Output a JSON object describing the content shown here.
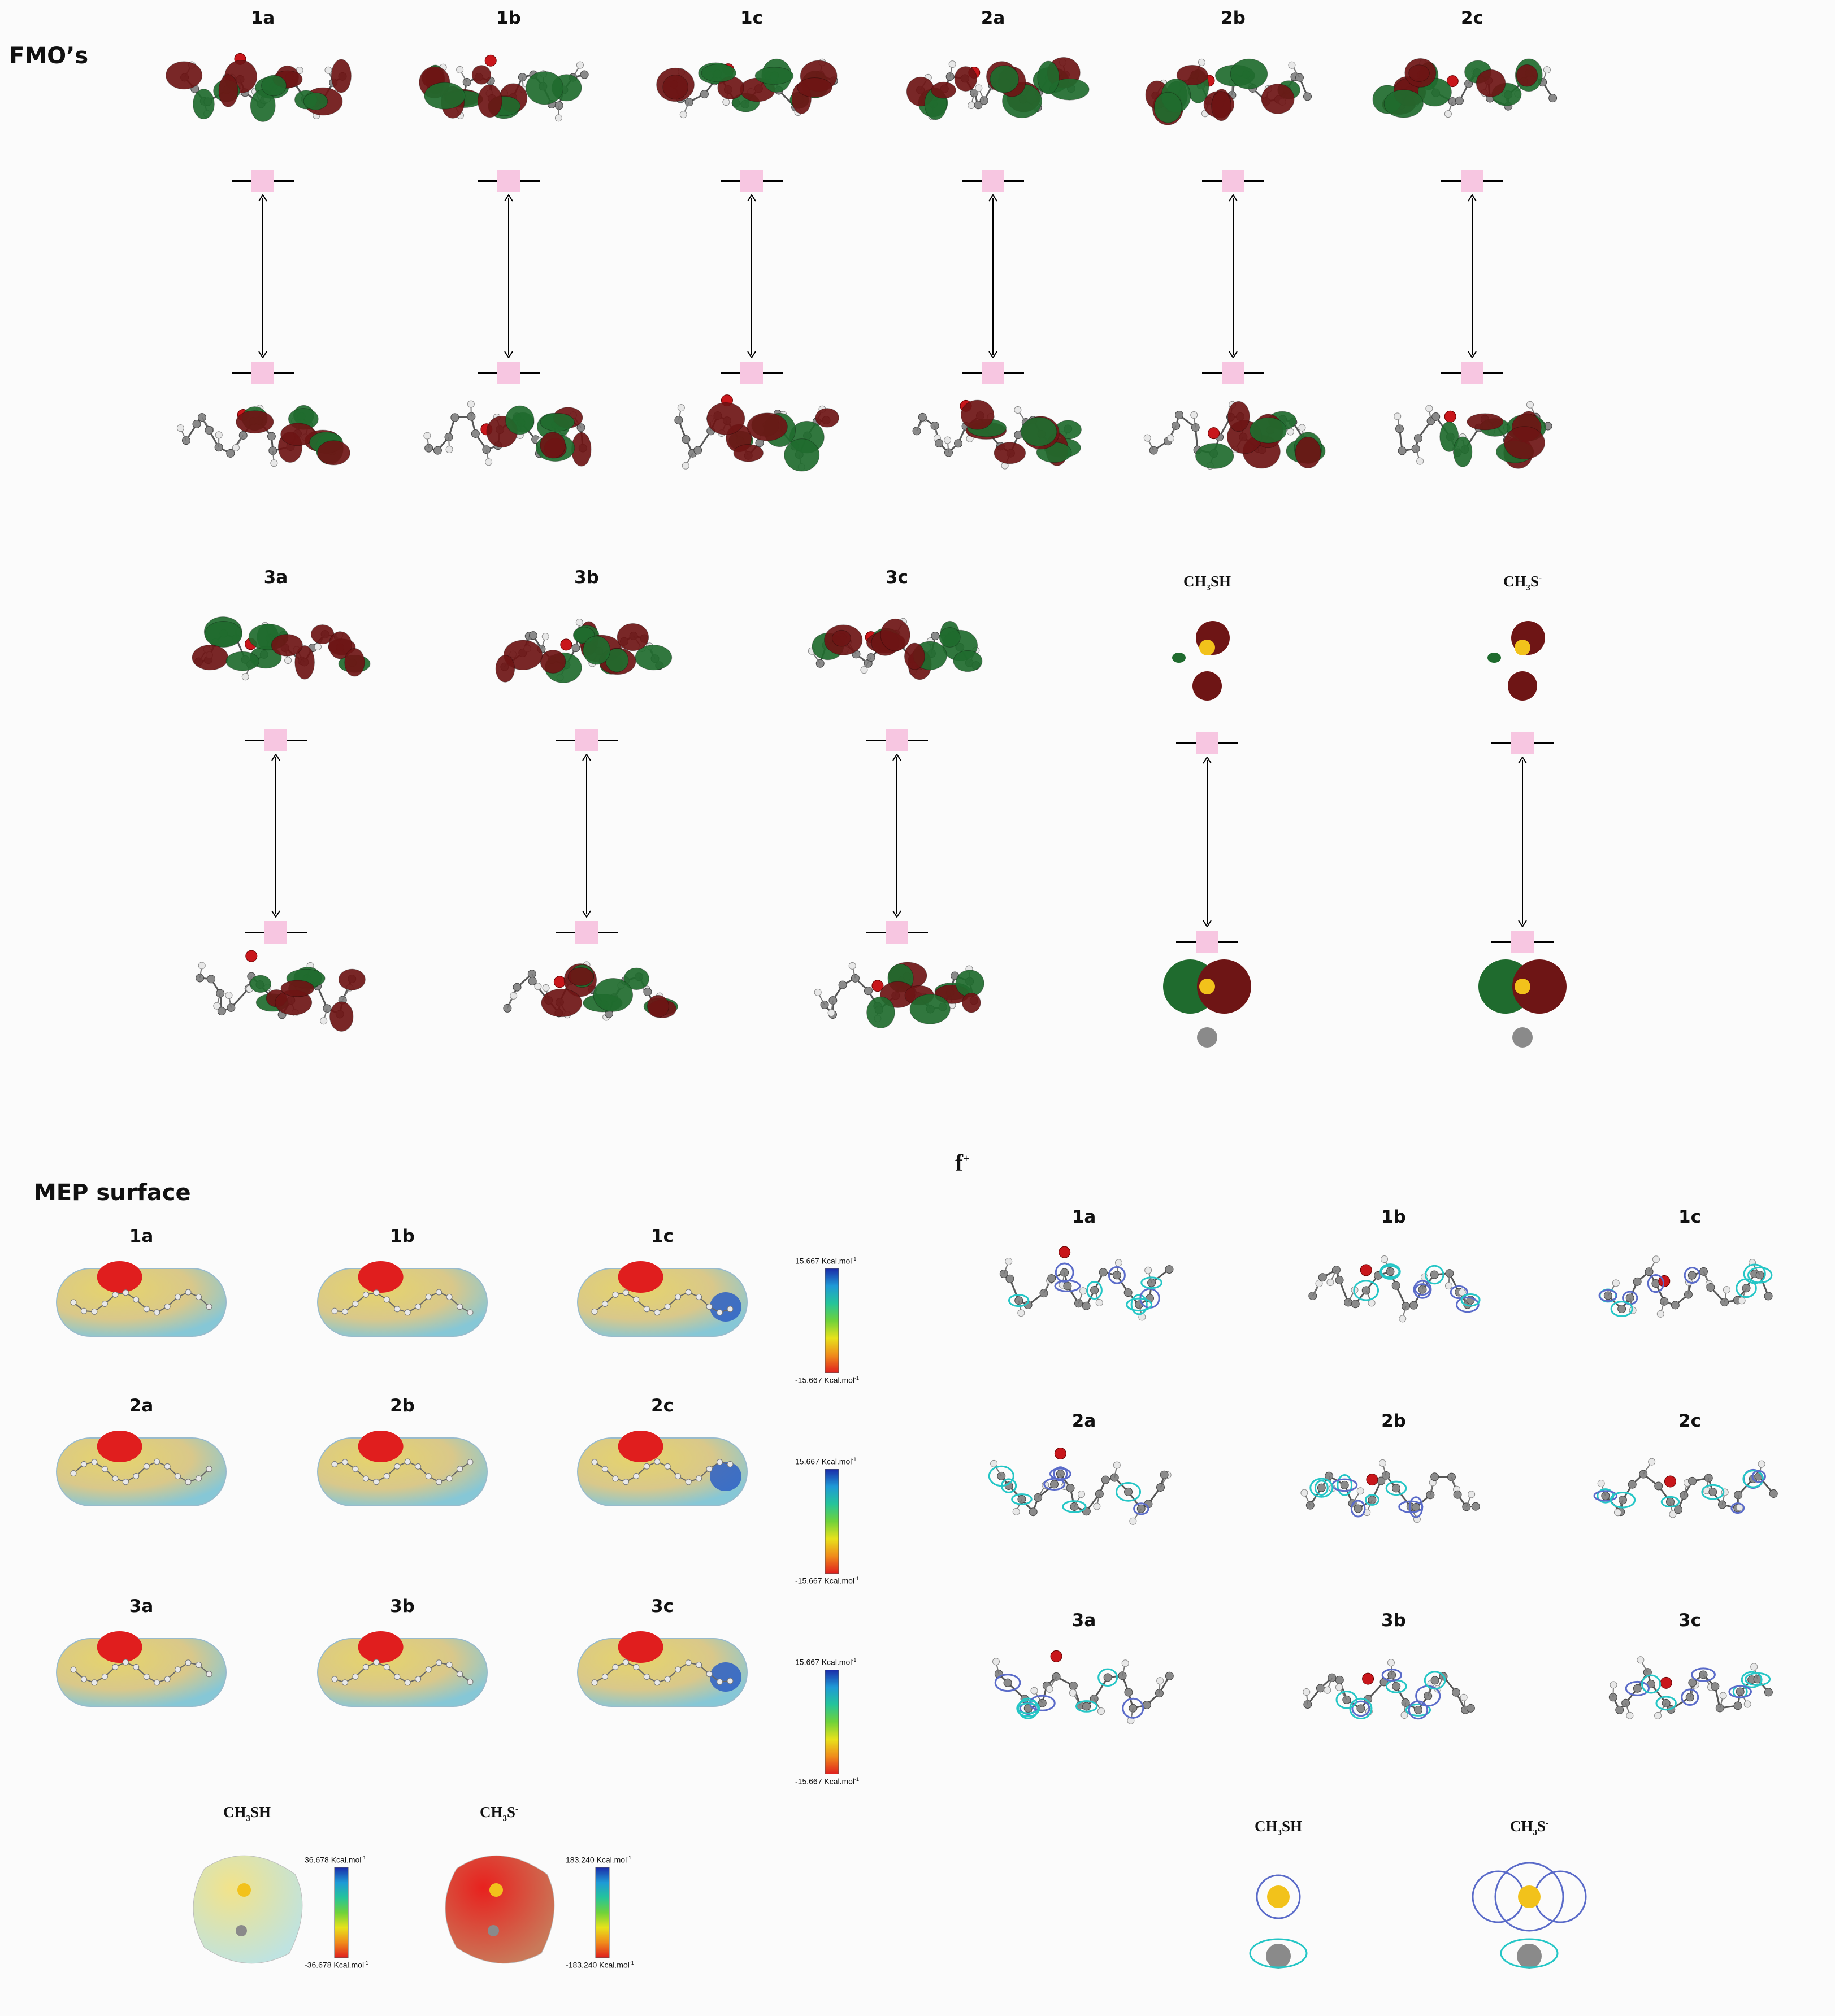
{
  "fmo": {
    "title": "FMO’s",
    "panels": [
      {
        "label": "1a"
      },
      {
        "label": "1b"
      },
      {
        "label": "1c"
      },
      {
        "label": "2a"
      },
      {
        "label": "2b"
      },
      {
        "label": "2c"
      },
      {
        "label": "3a"
      },
      {
        "label": "3b"
      },
      {
        "label": "3c"
      },
      {
        "label_main": "CH",
        "label_sub": "3",
        "label_rest": "SH"
      },
      {
        "label_main": "CH",
        "label_sub": "3",
        "label_rest": "S",
        "label_sup": "-"
      }
    ]
  },
  "mep": {
    "title": "MEP surface",
    "panels": [
      {
        "label": "1a"
      },
      {
        "label": "1b"
      },
      {
        "label": "1c"
      },
      {
        "label": "2a"
      },
      {
        "label": "2b"
      },
      {
        "label": "2c"
      },
      {
        "label": "3a"
      },
      {
        "label": "3b"
      },
      {
        "label": "3c"
      },
      {
        "label_main": "CH",
        "label_sub": "3",
        "label_rest": "SH"
      },
      {
        "label_main": "CH",
        "label_sub": "3",
        "label_rest": "S",
        "label_sup": "-"
      }
    ],
    "scales": [
      {
        "top": "15.667 Kcal.mol",
        "bottom": "-15.667 Kcal.mol",
        "unit_sup": "-1"
      },
      {
        "top": "15.667 Kcal.mol",
        "bottom": "-15.667 Kcal.mol",
        "unit_sup": "-1"
      },
      {
        "top": "15.667 Kcal.mol",
        "bottom": "-15.667 Kcal.mol",
        "unit_sup": "-1"
      },
      {
        "top": "36.678 Kcal.mol",
        "bottom": "-36.678 Kcal.mol",
        "unit_sup": "-1"
      },
      {
        "top": "183.240 Kcal.mol",
        "bottom": "-183.240 Kcal.mol",
        "unit_sup": "-1"
      }
    ]
  },
  "fplus": {
    "title_main": "f",
    "title_sup": "+",
    "panels": [
      {
        "label": "1a"
      },
      {
        "label": "1b"
      },
      {
        "label": "1c"
      },
      {
        "label": "2a"
      },
      {
        "label": "2b"
      },
      {
        "label": "2c"
      },
      {
        "label": "3a"
      },
      {
        "label": "3b"
      },
      {
        "label": "3c"
      },
      {
        "label_main": "CH",
        "label_sub": "3",
        "label_rest": "SH"
      },
      {
        "label_main": "CH",
        "label_sub": "3",
        "label_rest": "S",
        "label_sup": "-"
      }
    ]
  },
  "colors": {
    "orbital_green": "#1f6b2e",
    "orbital_red": "#6e1515",
    "level_box": "#f7c6e1",
    "atom_gray": "#8a8a8a",
    "atom_white": "#e8e8e8",
    "oxygen_red": "#c8161b",
    "sulfur_yellow": "#f2c21b",
    "density_blue": "#5a6bc9",
    "density_cyan": "#25c6c6"
  }
}
